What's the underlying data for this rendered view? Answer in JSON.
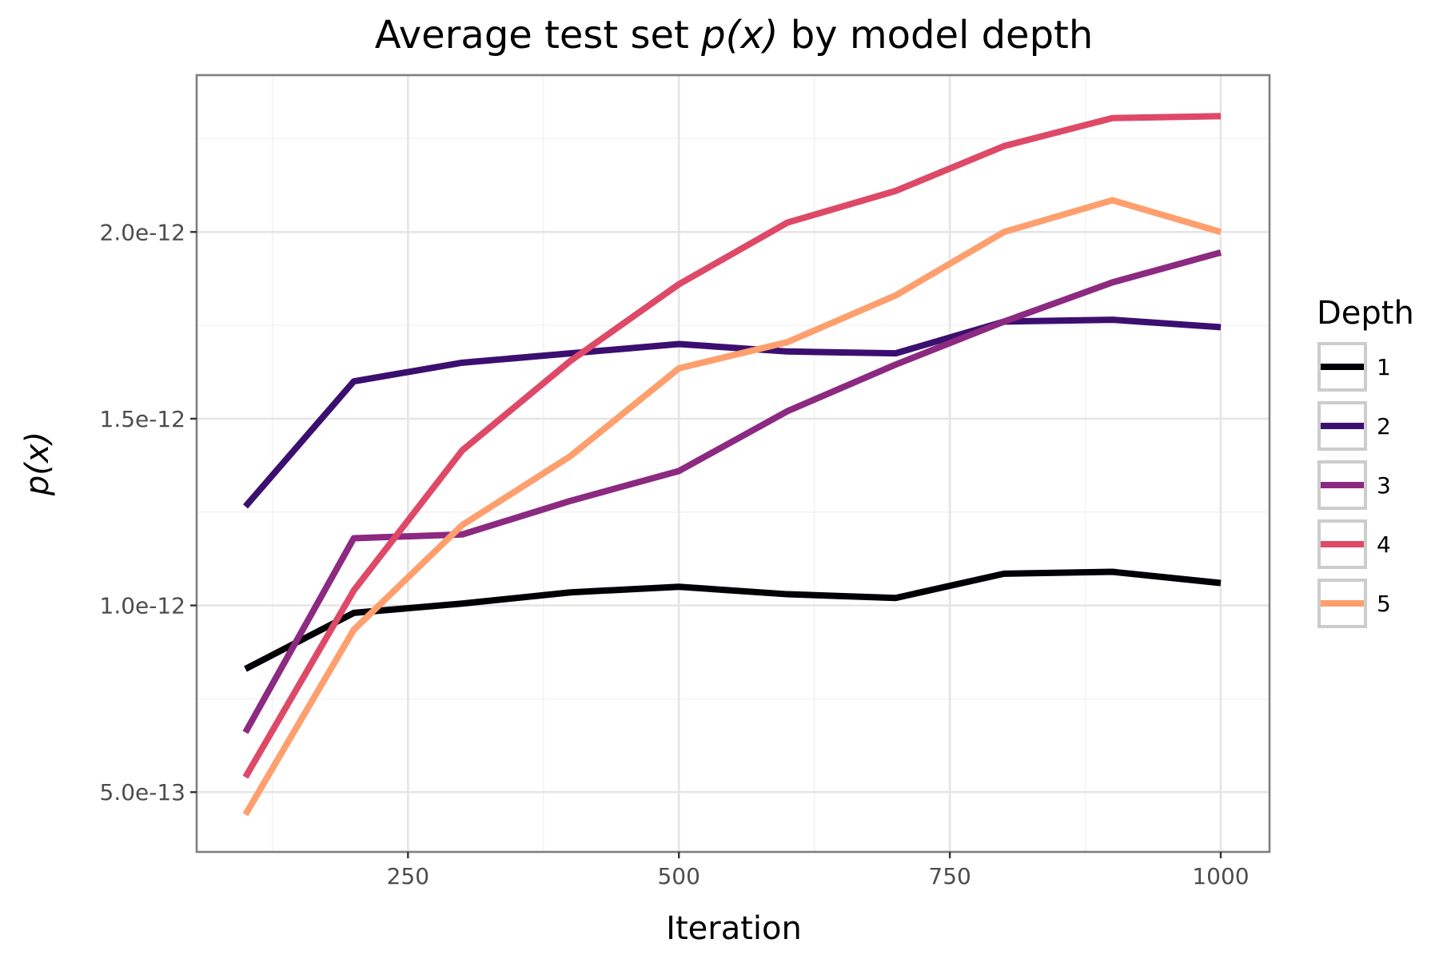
{
  "chart_data": {
    "type": "line",
    "title": "Average test set p(x) by model depth",
    "title_parts": {
      "before": "Average test set ",
      "math": "p(x)",
      "after": " by model depth"
    },
    "xlabel": "Iteration",
    "ylabel": "p(x)",
    "x": [
      100,
      200,
      300,
      400,
      500,
      600,
      700,
      800,
      900,
      1000
    ],
    "xlim": [
      55,
      1045
    ],
    "ylim": [
      3.4e-13,
      2.42e-12
    ],
    "x_ticks": [
      {
        "value": 250,
        "label": "250"
      },
      {
        "value": 500,
        "label": "500"
      },
      {
        "value": 750,
        "label": "750"
      },
      {
        "value": 1000,
        "label": "1000"
      }
    ],
    "x_minor_ticks": [
      125,
      375,
      625,
      875
    ],
    "y_ticks": [
      {
        "value": 5e-13,
        "label": "5.0e-13"
      },
      {
        "value": 1e-12,
        "label": "1.0e-12"
      },
      {
        "value": 1.5e-12,
        "label": "1.5e-12"
      },
      {
        "value": 2e-12,
        "label": "2.0e-12"
      }
    ],
    "y_minor_ticks": [
      7.5e-13,
      1.25e-12,
      1.75e-12,
      2.25e-12
    ],
    "grid": true,
    "legend": {
      "title": "Depth",
      "position": "right"
    },
    "series": [
      {
        "name": "1",
        "color": "#000004",
        "values": [
          8.3e-13,
          9.8e-13,
          1.005e-12,
          1.035e-12,
          1.05e-12,
          1.03e-12,
          1.02e-12,
          1.085e-12,
          1.09e-12,
          1.06e-12
        ]
      },
      {
        "name": "2",
        "color": "#3b0f70",
        "values": [
          1.265e-12,
          1.6e-12,
          1.65e-12,
          1.675e-12,
          1.7e-12,
          1.68e-12,
          1.675e-12,
          1.76e-12,
          1.765e-12,
          1.745e-12
        ]
      },
      {
        "name": "3",
        "color": "#8c2981",
        "values": [
          6.6e-13,
          1.18e-12,
          1.19e-12,
          1.28e-12,
          1.36e-12,
          1.52e-12,
          1.645e-12,
          1.76e-12,
          1.865e-12,
          1.945e-12
        ]
      },
      {
        "name": "4",
        "color": "#de4968",
        "values": [
          5.4e-13,
          1.04e-12,
          1.415e-12,
          1.655e-12,
          1.86e-12,
          2.025e-12,
          2.11e-12,
          2.23e-12,
          2.305e-12,
          2.31e-12
        ]
      },
      {
        "name": "5",
        "color": "#fe9f6d",
        "values": [
          4.4e-13,
          9.35e-13,
          1.215e-12,
          1.4e-12,
          1.635e-12,
          1.705e-12,
          1.83e-12,
          2e-12,
          2.085e-12,
          2e-12
        ]
      }
    ]
  }
}
